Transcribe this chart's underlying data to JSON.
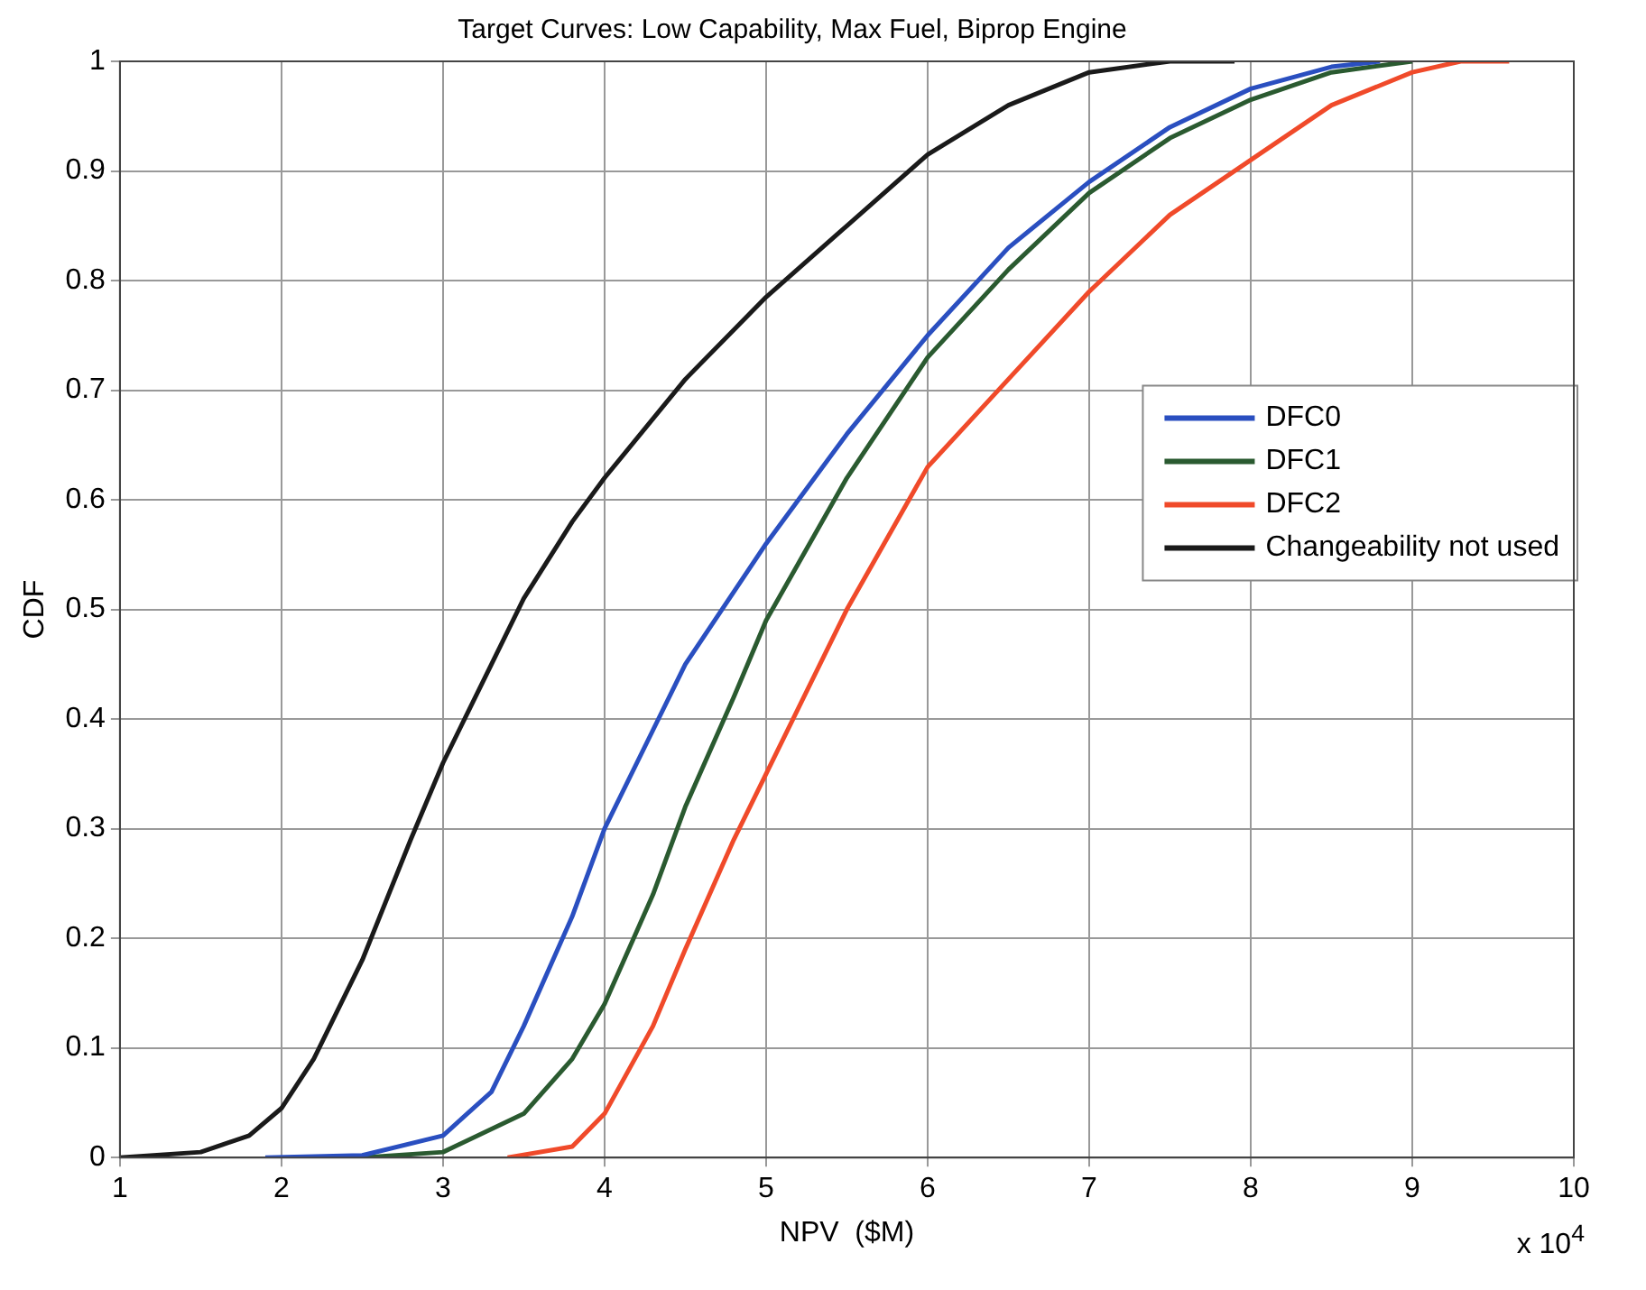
{
  "chart_data": {
    "type": "line",
    "title": "Target Curves: Low Capability, Max Fuel, Biprop Engine",
    "xlabel": "NPV  ($M)",
    "ylabel": "CDF",
    "annotations": [
      "x 10$^{4}$"
    ],
    "xlim": [
      1,
      10
    ],
    "xticks": [
      1,
      2,
      3,
      4,
      5,
      6,
      7,
      8,
      9,
      10
    ],
    "ylim": [
      0,
      1
    ],
    "yticks": [
      0,
      0.1,
      0.2,
      0.3,
      0.4,
      0.5,
      0.6,
      0.7,
      0.8,
      0.9,
      1
    ],
    "grid": true,
    "legend": "right",
    "marker": "none",
    "line_style": "solid",
    "series": [
      {
        "name": "DFC0",
        "color": "#2a4fc0",
        "x": [
          1.9,
          2.5,
          3.0,
          3.3,
          3.5,
          3.8,
          4.0,
          4.3,
          4.5,
          5.0,
          5.5,
          6.0,
          6.5,
          7.0,
          7.5,
          8.0,
          8.5,
          8.8
        ],
        "values": [
          0,
          0.002,
          0.02,
          0.06,
          0.12,
          0.22,
          0.3,
          0.39,
          0.45,
          0.56,
          0.66,
          0.75,
          0.83,
          0.89,
          0.94,
          0.975,
          0.995,
          1
        ]
      },
      {
        "name": "DFC1",
        "color": "#2a5a30",
        "x": [
          2.5,
          3.0,
          3.5,
          3.8,
          4.0,
          4.3,
          4.5,
          4.8,
          5.0,
          5.5,
          6.0,
          6.5,
          7.0,
          7.5,
          8.0,
          8.5,
          9.0
        ],
        "values": [
          0,
          0.005,
          0.04,
          0.09,
          0.14,
          0.24,
          0.32,
          0.42,
          0.49,
          0.62,
          0.73,
          0.81,
          0.88,
          0.93,
          0.965,
          0.99,
          1
        ]
      },
      {
        "name": "DFC2",
        "color": "#f04a2a",
        "x": [
          3.4,
          3.8,
          4.0,
          4.3,
          4.5,
          4.8,
          5.0,
          5.5,
          6.0,
          6.5,
          7.0,
          7.5,
          8.0,
          8.5,
          9.0,
          9.3,
          9.6
        ],
        "values": [
          0,
          0.01,
          0.04,
          0.12,
          0.19,
          0.29,
          0.35,
          0.5,
          0.63,
          0.71,
          0.79,
          0.86,
          0.91,
          0.96,
          0.99,
          1,
          1
        ]
      },
      {
        "name": "Changeability not used",
        "color": "#1a1a1a",
        "x": [
          1.0,
          1.5,
          1.8,
          2.0,
          2.2,
          2.5,
          2.8,
          3.0,
          3.3,
          3.5,
          3.8,
          4.0,
          4.5,
          5.0,
          5.5,
          6.0,
          6.5,
          7.0,
          7.5,
          7.9
        ],
        "values": [
          0,
          0.005,
          0.02,
          0.045,
          0.09,
          0.18,
          0.29,
          0.36,
          0.45,
          0.51,
          0.58,
          0.62,
          0.71,
          0.785,
          0.85,
          0.915,
          0.96,
          0.99,
          1,
          1
        ]
      }
    ]
  }
}
